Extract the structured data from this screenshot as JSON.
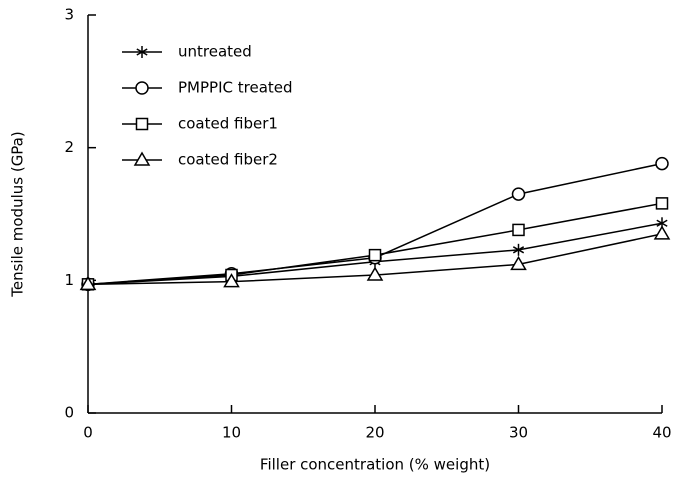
{
  "chart_data": {
    "type": "line",
    "x_label": "Filler concentration (% weight)",
    "y_label": "Tensile modulus (GPa)",
    "x": [
      0,
      10,
      20,
      30,
      40
    ],
    "series": [
      {
        "name": "untreated",
        "color": "#000000",
        "marker": "asterisk",
        "values": [
          0.97,
          1.03,
          1.14,
          1.23,
          1.43
        ]
      },
      {
        "name": "PMPPIC treated",
        "color": "#000000",
        "marker": "circle",
        "values": [
          0.97,
          1.05,
          1.17,
          1.65,
          1.88
        ]
      },
      {
        "name": "coated fiber1",
        "color": "#000000",
        "marker": "square",
        "values": [
          0.97,
          1.04,
          1.19,
          1.38,
          1.58
        ]
      },
      {
        "name": "coated fiber2",
        "color": "#000000",
        "marker": "triangle",
        "values": [
          0.97,
          0.99,
          1.04,
          1.12,
          1.35
        ]
      }
    ],
    "xlim": [
      0,
      40
    ],
    "xticks": [
      0,
      10,
      20,
      30,
      40
    ],
    "ylim": [
      0,
      3
    ],
    "yticks": [
      0,
      1,
      2,
      3
    ],
    "grid": false,
    "legend": "upper left"
  }
}
